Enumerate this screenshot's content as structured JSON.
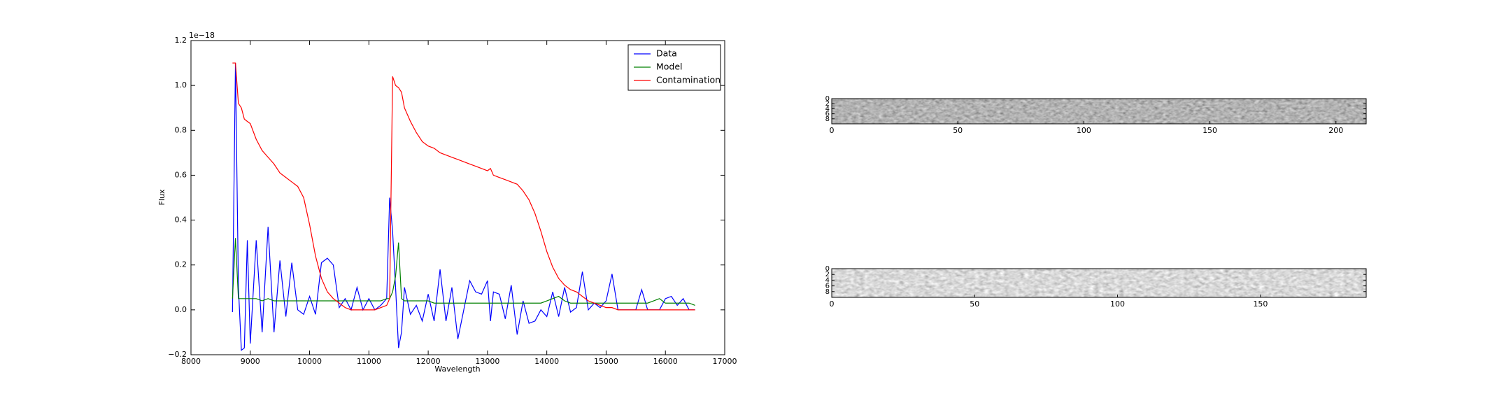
{
  "chart_data": [
    {
      "type": "line",
      "offset_text": "1e−18",
      "x_label": "Wavelength",
      "y_label": "Flux",
      "xlim": [
        8000,
        17000
      ],
      "xticks": [
        8000,
        9000,
        10000,
        11000,
        12000,
        13000,
        14000,
        15000,
        16000,
        17000
      ],
      "ylim": [
        -0.2,
        1.2
      ],
      "yticks": [
        {
          "value": -0.2,
          "label": "−0.2"
        },
        {
          "value": 0,
          "label": "0.0"
        },
        0.2,
        0.4,
        0.6,
        0.8,
        {
          "value": 1,
          "label": "1.0"
        },
        1.2
      ],
      "legend": "upper right",
      "x": [
        8700,
        8750,
        8800,
        8850,
        8900,
        8950,
        9000,
        9100,
        9200,
        9300,
        9400,
        9500,
        9600,
        9700,
        9800,
        9900,
        10000,
        10100,
        10200,
        10300,
        10400,
        10500,
        10600,
        10700,
        10800,
        10900,
        11000,
        11100,
        11200,
        11300,
        11350,
        11400,
        11450,
        11500,
        11550,
        11600,
        11700,
        11800,
        11900,
        12000,
        12100,
        12200,
        12300,
        12400,
        12500,
        12600,
        12700,
        12800,
        12900,
        13000,
        13050,
        13100,
        13200,
        13300,
        13400,
        13500,
        13600,
        13700,
        13800,
        13900,
        14000,
        14100,
        14200,
        14300,
        14400,
        14500,
        14600,
        14700,
        14800,
        14900,
        15000,
        15100,
        15200,
        15300,
        15400,
        15500,
        15600,
        15700,
        15800,
        15900,
        16000,
        16100,
        16200,
        16300,
        16400,
        16500
      ],
      "series": [
        {
          "name": "Data",
          "color": "#0000ff",
          "values": [
            -0.01,
            1.1,
            0.1,
            -0.18,
            -0.17,
            0.31,
            -0.15,
            0.31,
            -0.1,
            0.37,
            -0.1,
            0.22,
            -0.03,
            0.21,
            0.0,
            -0.02,
            0.06,
            -0.02,
            0.21,
            0.23,
            0.2,
            0.01,
            0.05,
            0.0,
            0.1,
            0.0,
            0.05,
            0.0,
            0.02,
            0.05,
            0.5,
            0.35,
            0.1,
            -0.17,
            -0.1,
            0.1,
            -0.02,
            0.02,
            -0.05,
            0.07,
            -0.05,
            0.18,
            -0.05,
            0.1,
            -0.13,
            0.0,
            0.13,
            0.08,
            0.07,
            0.13,
            -0.05,
            0.08,
            0.07,
            -0.04,
            0.11,
            -0.11,
            0.04,
            -0.06,
            -0.05,
            0.0,
            -0.03,
            0.08,
            -0.03,
            0.1,
            -0.01,
            0.01,
            0.17,
            0.0,
            0.03,
            0.01,
            0.04,
            0.16,
            0.0,
            0.0,
            0.0,
            0.0,
            0.09,
            0.0,
            0.0,
            0.0,
            0.05,
            0.06,
            0.02,
            0.05,
            0.0,
            0.0
          ]
        },
        {
          "name": "Model",
          "color": "#008000",
          "values": [
            0.05,
            0.32,
            0.05,
            0.05,
            0.05,
            0.05,
            0.05,
            0.05,
            0.04,
            0.05,
            0.04,
            0.04,
            0.04,
            0.04,
            0.04,
            0.04,
            0.04,
            0.04,
            0.04,
            0.04,
            0.04,
            0.04,
            0.04,
            0.04,
            0.04,
            0.04,
            0.04,
            0.04,
            0.04,
            0.05,
            0.05,
            0.08,
            0.15,
            0.3,
            0.05,
            0.04,
            0.04,
            0.04,
            0.04,
            0.04,
            0.03,
            0.03,
            0.03,
            0.03,
            0.03,
            0.03,
            0.03,
            0.03,
            0.03,
            0.03,
            0.03,
            0.03,
            0.03,
            0.03,
            0.03,
            0.03,
            0.03,
            0.03,
            0.03,
            0.03,
            0.04,
            0.05,
            0.06,
            0.04,
            0.03,
            0.03,
            0.03,
            0.03,
            0.03,
            0.03,
            0.03,
            0.03,
            0.03,
            0.03,
            0.03,
            0.03,
            0.03,
            0.03,
            0.04,
            0.05,
            0.03,
            0.03,
            0.03,
            0.03,
            0.03,
            0.02
          ]
        },
        {
          "name": "Contamination",
          "color": "#ff0000",
          "values": [
            1.1,
            1.1,
            0.92,
            0.9,
            0.85,
            0.84,
            0.83,
            0.76,
            0.71,
            0.68,
            0.65,
            0.61,
            0.59,
            0.57,
            0.55,
            0.5,
            0.38,
            0.24,
            0.14,
            0.08,
            0.05,
            0.03,
            0.01,
            0.0,
            0.0,
            0.0,
            0.0,
            0.0,
            0.01,
            0.02,
            0.05,
            1.04,
            1.0,
            0.99,
            0.97,
            0.9,
            0.84,
            0.79,
            0.75,
            0.73,
            0.72,
            0.7,
            0.69,
            0.68,
            0.67,
            0.66,
            0.65,
            0.64,
            0.63,
            0.62,
            0.63,
            0.6,
            0.59,
            0.58,
            0.57,
            0.56,
            0.53,
            0.49,
            0.43,
            0.35,
            0.26,
            0.19,
            0.14,
            0.11,
            0.09,
            0.08,
            0.06,
            0.04,
            0.03,
            0.02,
            0.01,
            0.01,
            0.0,
            0.0,
            0.0,
            0.0,
            0.0,
            0.0,
            0.0,
            0.0,
            0.0,
            0.0,
            0.0,
            0.0,
            0.0,
            0.0
          ]
        }
      ]
    },
    {
      "type": "image",
      "xlim": [
        0,
        212
      ],
      "xticks": [
        0,
        50,
        100,
        150,
        200
      ],
      "ylim": [
        10,
        0
      ],
      "yticks": [
        0,
        2,
        4,
        6,
        8
      ]
    },
    {
      "type": "image",
      "xlim": [
        0,
        187
      ],
      "xticks": [
        0,
        50,
        100,
        150
      ],
      "ylim": [
        10,
        0
      ],
      "yticks": [
        0,
        2,
        4,
        6,
        8
      ]
    }
  ]
}
